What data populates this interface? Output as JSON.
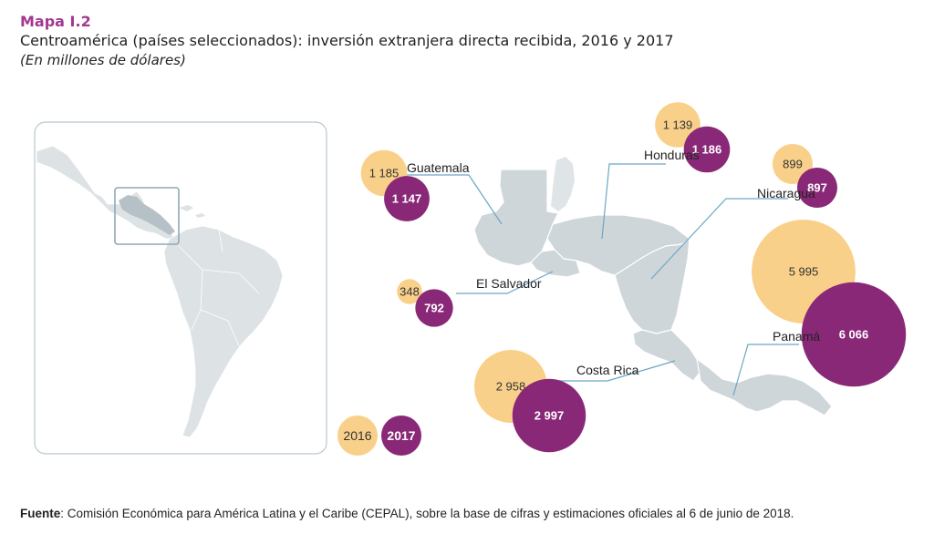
{
  "header": {
    "label": "Mapa I.2",
    "title": "Centroamérica (países seleccionados): inversión extranjera directa recibida, 2016 y 2017",
    "subtitle": "(En millones de dólares)"
  },
  "colors": {
    "y2016": "#f9d08a",
    "y2017": "#8a2878",
    "land": "#cfd6da",
    "land_inset": "#dde2e5",
    "leader": "#6aa7c4"
  },
  "legend": {
    "y2016": "2016",
    "y2017": "2017"
  },
  "chart_data": {
    "type": "bubble-map",
    "unit": "millones de dólares",
    "series": [
      {
        "name": "2016"
      },
      {
        "name": "2017"
      }
    ],
    "countries": [
      {
        "name": "Guatemala",
        "v2016": 1185,
        "v2016_label": "1 185",
        "v2017": 1147,
        "v2017_label": "1 147"
      },
      {
        "name": "Honduras",
        "v2016": 1139,
        "v2016_label": "1 139",
        "v2017": 1186,
        "v2017_label": "1 186"
      },
      {
        "name": "Nicaragua",
        "v2016": 899,
        "v2016_label": "899",
        "v2017": 897,
        "v2017_label": "897"
      },
      {
        "name": "El Salvador",
        "v2016": 348,
        "v2016_label": "348",
        "v2017": 792,
        "v2017_label": "792"
      },
      {
        "name": "Panamá",
        "v2016": 5995,
        "v2016_label": "5 995",
        "v2017": 6066,
        "v2017_label": "6 066"
      },
      {
        "name": "Costa Rica",
        "v2016": 2958,
        "v2016_label": "2 958",
        "v2017": 2997,
        "v2017_label": "2 997"
      }
    ]
  },
  "source": {
    "label": "Fuente",
    "text": ": Comisión Económica para América Latina y el Caribe (CEPAL), sobre la base de cifras y estimaciones oficiales al 6 de junio de 2018."
  }
}
